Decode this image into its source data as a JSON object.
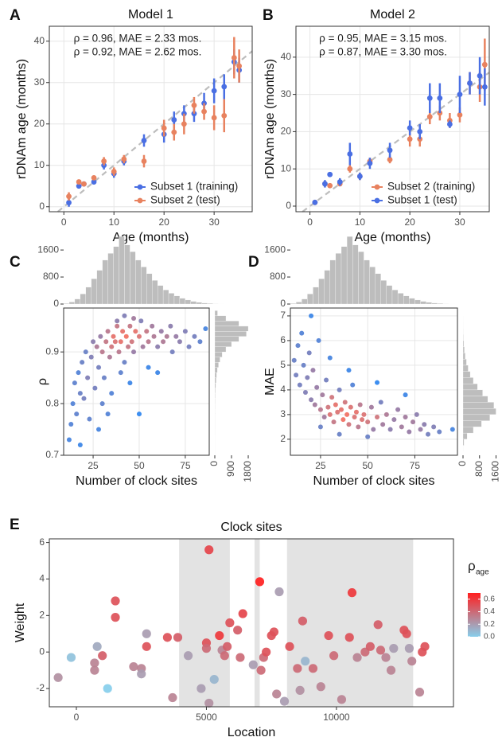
{
  "chart_data": [
    {
      "type": "errorbar",
      "panel_label": "A",
      "title": "Model 1",
      "xlabel": "Age (months)",
      "ylabel": "rDNAm age (months)",
      "xlim": [
        -2.9,
        37.6
      ],
      "ylim": [
        -1.2,
        43.6
      ],
      "xticks": [
        0,
        10,
        20,
        30
      ],
      "yticks": [
        0,
        10,
        20,
        30,
        40
      ],
      "grid": true,
      "identity_line": true,
      "legend": "bottom-right",
      "annotations": [
        {
          "text": "ρ = 0.96, MAE = 2.33 mos.",
          "color": "#4a6fe3"
        },
        {
          "text": "ρ = 0.92, MAE = 2.62 mos.",
          "color": "#e8825f"
        }
      ],
      "series": [
        {
          "name": "Subset 1 (training)",
          "color": "#4a6fe3",
          "x": [
            1,
            3,
            4,
            6,
            8,
            10,
            12,
            16,
            20,
            22,
            24,
            26,
            28,
            30,
            32,
            34,
            35
          ],
          "values": [
            1,
            5,
            5.5,
            6,
            10,
            8,
            11,
            16,
            17.5,
            21,
            22.5,
            22.5,
            25,
            28,
            29,
            35,
            33
          ],
          "errors": [
            1,
            0.5,
            0.5,
            0.5,
            1,
            1,
            1,
            1.5,
            2,
            2,
            2,
            2,
            2.5,
            3,
            3,
            3,
            3
          ]
        },
        {
          "name": "Subset 2 (test)",
          "color": "#e8825f",
          "x": [
            1,
            3,
            4,
            6,
            8,
            10,
            12,
            16,
            20,
            22,
            24,
            26,
            28,
            30,
            32,
            34,
            35
          ],
          "values": [
            2.5,
            6,
            5.5,
            7,
            11,
            8.5,
            11.5,
            11,
            19,
            18,
            20,
            24.5,
            23,
            21.5,
            22,
            36,
            34
          ],
          "errors": [
            1,
            0.5,
            0.5,
            0.5,
            1,
            1,
            1,
            1.5,
            2,
            2,
            2.5,
            2,
            2,
            3,
            4,
            5,
            4
          ]
        }
      ]
    },
    {
      "type": "errorbar",
      "panel_label": "B",
      "title": "Model 2",
      "xlabel": "Age (months)",
      "ylabel": "rDNAm age (months)",
      "xlim": [
        -2.8,
        35.9
      ],
      "ylim": [
        -1.5,
        48.3
      ],
      "xticks": [
        0,
        10,
        20,
        30
      ],
      "yticks": [
        0,
        10,
        20,
        30,
        40
      ],
      "grid": true,
      "identity_line": true,
      "legend": "bottom-right",
      "annotations": [
        {
          "text": "ρ = 0.95, MAE = 3.15 mos.",
          "color": "#e8825f"
        },
        {
          "text": "ρ = 0.87, MAE = 3.30 mos.",
          "color": "#4a6fe3"
        }
      ],
      "series": [
        {
          "name": "Subset 2 (training)",
          "color": "#e8825f",
          "x": [
            1,
            3,
            4,
            6,
            8,
            10,
            12,
            16,
            20,
            22,
            24,
            26,
            28,
            30,
            32,
            34,
            35
          ],
          "values": [
            1,
            6,
            5.5,
            6,
            10,
            8,
            12,
            12.5,
            18,
            18,
            24,
            25,
            23,
            24.5,
            33,
            32,
            38
          ],
          "errors": [
            0.5,
            0.5,
            0.5,
            0.5,
            1,
            1,
            1,
            1,
            2,
            2,
            2,
            2,
            2,
            2,
            3,
            4,
            7
          ]
        },
        {
          "name": "Subset 1 (test)",
          "color": "#4a6fe3",
          "x": [
            1,
            3,
            4,
            6,
            8,
            10,
            12,
            16,
            20,
            22,
            24,
            26,
            28,
            30,
            32,
            34,
            35
          ],
          "values": [
            1,
            6,
            8.5,
            6.5,
            14,
            8,
            11.5,
            15,
            21,
            20,
            29,
            29,
            22,
            30,
            33,
            35,
            32
          ],
          "errors": [
            0.5,
            1,
            0.5,
            1,
            3,
            1,
            1.5,
            2,
            2,
            2,
            4,
            4,
            1,
            5,
            3,
            5,
            5
          ]
        }
      ]
    },
    {
      "type": "scatter",
      "panel_label": "C",
      "xlabel": "Number of clock sites",
      "ylabel": "ρ",
      "xlim": [
        9,
        88
      ],
      "ylim": [
        0.7,
        0.985
      ],
      "xticks": [
        25,
        50,
        75
      ],
      "yticks": [
        0.7,
        0.8,
        0.9
      ],
      "grid": true,
      "color_by": "density",
      "color_low": "#3d8ef0",
      "color_high": "#f27a6d",
      "x": [
        12,
        13,
        14,
        15,
        16,
        17,
        18,
        19,
        20,
        21,
        22,
        23,
        24,
        25,
        26,
        27,
        28,
        29,
        30,
        31,
        32,
        33,
        34,
        35,
        36,
        37,
        38,
        39,
        40,
        41,
        42,
        43,
        44,
        45,
        46,
        47,
        48,
        50,
        51,
        52,
        54,
        55,
        57,
        58,
        60,
        62,
        63,
        65,
        67,
        68,
        70,
        72,
        75,
        77,
        80,
        83,
        86,
        30,
        35,
        40,
        45,
        55,
        28,
        33,
        18,
        50,
        60,
        38,
        42,
        47
      ],
      "values": [
        0.73,
        0.76,
        0.8,
        0.84,
        0.78,
        0.86,
        0.82,
        0.88,
        0.81,
        0.9,
        0.85,
        0.77,
        0.89,
        0.92,
        0.83,
        0.91,
        0.87,
        0.93,
        0.9,
        0.85,
        0.92,
        0.94,
        0.89,
        0.91,
        0.93,
        0.92,
        0.95,
        0.9,
        0.92,
        0.94,
        0.88,
        0.93,
        0.91,
        0.95,
        0.92,
        0.9,
        0.94,
        0.93,
        0.96,
        0.91,
        0.94,
        0.92,
        0.95,
        0.93,
        0.91,
        0.94,
        0.92,
        0.93,
        0.95,
        0.9,
        0.93,
        0.92,
        0.94,
        0.91,
        0.93,
        0.92,
        0.945,
        0.8,
        0.82,
        0.86,
        0.84,
        0.87,
        0.75,
        0.78,
        0.72,
        0.78,
        0.86,
        0.96,
        0.97,
        0.965
      ]
    },
    {
      "type": "histogram",
      "orientation": "vertical",
      "color": "#bdbdbd",
      "xlim": [
        9,
        88
      ],
      "ylim": [
        0,
        2050
      ],
      "yticks": [
        0,
        800,
        1600
      ],
      "bins": [
        9,
        12,
        15,
        18,
        21,
        24,
        27,
        30,
        33,
        36,
        39,
        42,
        45,
        48,
        51,
        54,
        57,
        60,
        63,
        66,
        69,
        72,
        75,
        78,
        81,
        84,
        87,
        90,
        93,
        96
      ],
      "values": [
        20,
        60,
        150,
        300,
        500,
        750,
        1000,
        1300,
        1500,
        1700,
        2000,
        1750,
        1550,
        1300,
        1100,
        900,
        700,
        550,
        420,
        320,
        240,
        170,
        120,
        80,
        50,
        30,
        20,
        10,
        5
      ]
    },
    {
      "type": "histogram",
      "orientation": "horizontal",
      "color": "#bdbdbd",
      "xlim": [
        0,
        1970
      ],
      "ylim": [
        0.7,
        0.985
      ],
      "xticks": [
        0,
        900,
        1800
      ],
      "bins": [
        0.7,
        0.71,
        0.72,
        0.73,
        0.74,
        0.75,
        0.76,
        0.77,
        0.78,
        0.79,
        0.8,
        0.81,
        0.82,
        0.83,
        0.84,
        0.85,
        0.86,
        0.87,
        0.88,
        0.89,
        0.9,
        0.91,
        0.92,
        0.93,
        0.94,
        0.95,
        0.96,
        0.97,
        0.98
      ],
      "values": [
        3,
        4,
        5,
        6,
        8,
        10,
        10,
        12,
        15,
        18,
        20,
        25,
        35,
        50,
        70,
        100,
        140,
        200,
        280,
        400,
        600,
        900,
        1300,
        1700,
        1800,
        1300,
        600,
        150
      ]
    },
    {
      "type": "scatter",
      "panel_label": "D",
      "xlabel": "Number of clock sites",
      "ylabel": "MAE",
      "xlim": [
        9,
        97.6
      ],
      "ylim": [
        1.35,
        7.32
      ],
      "xticks": [
        25,
        50,
        75
      ],
      "yticks": [
        2,
        3,
        4,
        5,
        6,
        7
      ],
      "grid": true,
      "color_by": "density",
      "color_low": "#3d8ef0",
      "color_high": "#f27a6d",
      "x": [
        11,
        12,
        13,
        14,
        15,
        16,
        17,
        18,
        19,
        20,
        21,
        22,
        23,
        24,
        25,
        26,
        27,
        28,
        29,
        30,
        31,
        32,
        33,
        34,
        35,
        36,
        37,
        38,
        39,
        40,
        41,
        42,
        43,
        44,
        45,
        46,
        47,
        48,
        50,
        52,
        53,
        55,
        57,
        58,
        60,
        62,
        64,
        66,
        68,
        70,
        72,
        74,
        76,
        78,
        80,
        82,
        85,
        88,
        95,
        20,
        30,
        40,
        55,
        70,
        35,
        50,
        25
      ],
      "values": [
        5.2,
        4.6,
        5.8,
        4.2,
        6.3,
        5,
        3.9,
        4.5,
        5.5,
        3.6,
        4.8,
        3.4,
        4.1,
        6,
        3.2,
        3.8,
        2.9,
        4.4,
        3.3,
        3,
        3.7,
        2.7,
        3.4,
        3.1,
        4,
        3.2,
        2.8,
        3.5,
        3,
        2.6,
        3.3,
        4.2,
        2.9,
        3.1,
        2.5,
        3.4,
        2.8,
        3,
        2.7,
        3.3,
        2.4,
        2.9,
        3.5,
        2.6,
        3,
        2.4,
        2.8,
        3.2,
        2.5,
        2.9,
        2.3,
        2.7,
        3,
        2.4,
        2.6,
        2.2,
        2.5,
        2.3,
        2.4,
        7,
        5.3,
        4.8,
        4.3,
        3.8,
        2.2,
        2.1,
        2.5
      ]
    },
    {
      "type": "histogram",
      "orientation": "vertical",
      "color": "#bdbdbd",
      "xlim": [
        9,
        97.6
      ],
      "ylim": [
        0,
        2050
      ],
      "yticks": [
        0,
        800,
        1600
      ],
      "bins": [
        9,
        12,
        15,
        18,
        21,
        24,
        27,
        30,
        33,
        36,
        39,
        42,
        45,
        48,
        51,
        54,
        57,
        60,
        63,
        66,
        69,
        72,
        75,
        78,
        81,
        84,
        87,
        90,
        93,
        96
      ],
      "values": [
        20,
        60,
        150,
        300,
        500,
        750,
        1000,
        1300,
        1500,
        1700,
        2000,
        1750,
        1550,
        1300,
        1100,
        900,
        700,
        550,
        420,
        320,
        240,
        170,
        120,
        80,
        50,
        30,
        20,
        10,
        5
      ]
    },
    {
      "type": "histogram",
      "orientation": "horizontal",
      "color": "#bdbdbd",
      "xlim": [
        0,
        1620
      ],
      "ylim": [
        1.35,
        7.32
      ],
      "xticks": [
        0,
        800,
        1600
      ],
      "bins": [
        1.5,
        1.75,
        2,
        2.25,
        2.5,
        2.75,
        3,
        3.25,
        3.5,
        3.75,
        4,
        4.25,
        4.5,
        4.75,
        5,
        5.25,
        5.5,
        5.75,
        6,
        6.25,
        6.5,
        6.75,
        7
      ],
      "values": [
        5,
        50,
        200,
        500,
        900,
        1300,
        1600,
        1500,
        1200,
        950,
        700,
        500,
        350,
        250,
        170,
        110,
        70,
        40,
        20,
        10,
        5,
        2
      ]
    },
    {
      "type": "scatter",
      "panel_label": "E",
      "title": "Clock sites",
      "xlabel": "Location",
      "ylabel": "Weight",
      "xlim": [
        -1040,
        14500
      ],
      "ylim": [
        -3,
        6.2
      ],
      "xticks": [
        0,
        5000,
        10000
      ],
      "yticks": [
        -2,
        0,
        2,
        4,
        6
      ],
      "grid": false,
      "shaded_regions": [
        [
          3950,
          5900
        ],
        [
          6850,
          7050
        ],
        [
          8100,
          12950
        ]
      ],
      "shade_color": "#e3e3e3",
      "color_low": "#87ceeb",
      "color_high": "#ff1f1f",
      "clim": [
        0,
        0.7
      ],
      "colorbar_title": "ρ",
      "colorbar_subscript": "age",
      "colorbar_ticks": [
        {
          "value": 0,
          "label": "0.0"
        },
        0.2,
        0.4,
        0.6
      ],
      "x": [
        -700,
        -200,
        700,
        700,
        800,
        1000,
        1200,
        1500,
        1500,
        2200,
        2500,
        2500,
        2700,
        2700,
        3500,
        3700,
        3900,
        4300,
        4800,
        5000,
        5000,
        5100,
        5100,
        5300,
        5500,
        5600,
        5700,
        5800,
        5900,
        6200,
        6300,
        6400,
        6800,
        7050,
        7100,
        7200,
        7300,
        7500,
        7600,
        7700,
        7800,
        8000,
        8200,
        8500,
        8600,
        8700,
        8800,
        9100,
        9400,
        9700,
        9900,
        10200,
        10500,
        10600,
        10800,
        11100,
        11300,
        11600,
        11700,
        11900,
        12100,
        12200,
        12600,
        12700,
        12800,
        12900,
        13200,
        13300,
        13400
      ],
      "values": [
        -1.4,
        -0.3,
        -0.6,
        -1,
        0.3,
        -0.2,
        -2,
        2.8,
        1.9,
        -0.8,
        -0.9,
        -1.2,
        1,
        0.3,
        0.8,
        -2.5,
        0.8,
        -0.2,
        -2,
        0.5,
        0.2,
        5.6,
        -2.8,
        -1.5,
        0.9,
        0.1,
        -0.2,
        0.3,
        1.6,
        1.2,
        -0.3,
        2.1,
        -0.7,
        3.85,
        -1,
        -0.3,
        0,
        0.9,
        1.1,
        -2.3,
        3.3,
        -2.7,
        0.3,
        -0.9,
        -2.1,
        1.7,
        -0.5,
        -0.9,
        -1.9,
        0.9,
        -0.2,
        -2.6,
        0.8,
        3.25,
        -0.3,
        0,
        0.3,
        1.5,
        0.1,
        -0.3,
        -1,
        0.2,
        1.2,
        1,
        0.2,
        -0.5,
        -2.2,
        0,
        0.3
      ],
      "color_values": [
        0.25,
        0.05,
        0.3,
        0.3,
        0.15,
        0.45,
        0,
        0.5,
        0.5,
        0.3,
        0.3,
        0.2,
        0.2,
        0.5,
        0.5,
        0.3,
        0.45,
        0.2,
        0.2,
        0.5,
        0.4,
        0.55,
        0.25,
        0.1,
        0.6,
        0.3,
        0.4,
        0.45,
        0.5,
        0.45,
        0.4,
        0.55,
        0.2,
        0.7,
        0.4,
        0.4,
        0.5,
        0.5,
        0.5,
        0.3,
        0.2,
        0.2,
        0.5,
        0.4,
        0.25,
        0.45,
        0.1,
        0.4,
        0.3,
        0.5,
        0.4,
        0.3,
        0.5,
        0.6,
        0.3,
        0.4,
        0.45,
        0.45,
        0.4,
        0.3,
        0.3,
        0.2,
        0.5,
        0.5,
        0.2,
        0.3,
        0.3,
        0.5,
        0.5
      ]
    }
  ]
}
